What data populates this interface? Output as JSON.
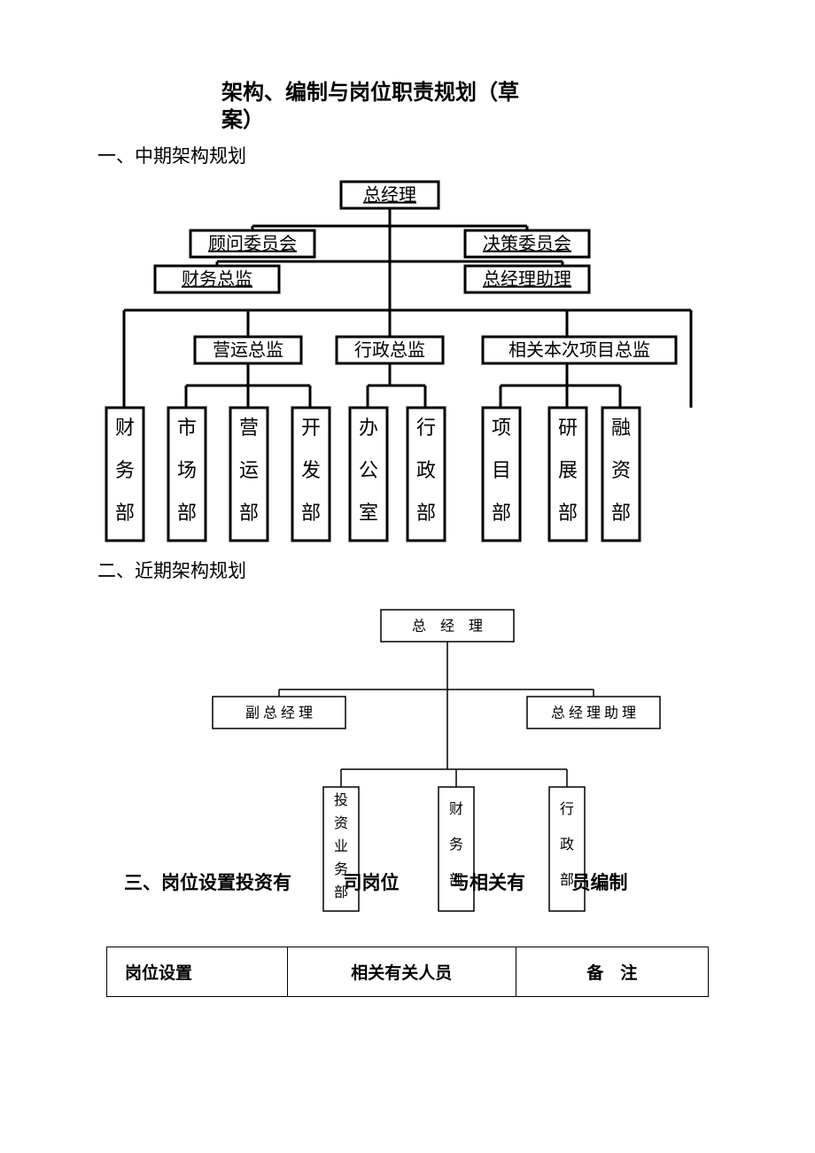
{
  "title_line1": "架构、编制与岗位职责规划（草",
  "title_line2": "案）",
  "section1": "一、中期架构规划",
  "section2": "二、近期架构规划",
  "section3_a": "三、岗位设置投资有",
  "section3_b": "司岗位",
  "section3_c": "与相关有",
  "section3_d": "员编制",
  "chart1": {
    "top": "总经理",
    "row2_left": "顾问委员会",
    "row2_right": "决策委员会",
    "row3_left": "财务总监",
    "row3_right": "总经理助理",
    "row4_a": "营运总监",
    "row4_b": "行政总监",
    "row4_c": "相关本次项目总监",
    "depts": [
      "财务部",
      "市场部",
      "营运部",
      "开发部",
      "办公室",
      "行政部",
      "项目部",
      "研展部",
      "融资部"
    ],
    "stroke_w": 3,
    "text_fs": 20
  },
  "chart2": {
    "top": "总　经　理",
    "row2_left": "副 总 经 理",
    "row2_right": "总 经 理 助 理",
    "depts": [
      "投资业务部",
      "财务部",
      "行政部"
    ],
    "stroke_w": 1.5,
    "text_fs": 16
  },
  "table": {
    "col1": "岗位设置",
    "col2": "相关有关人员",
    "col3": "备　注"
  },
  "colors": {
    "fg": "#000000",
    "bg": "#ffffff"
  }
}
